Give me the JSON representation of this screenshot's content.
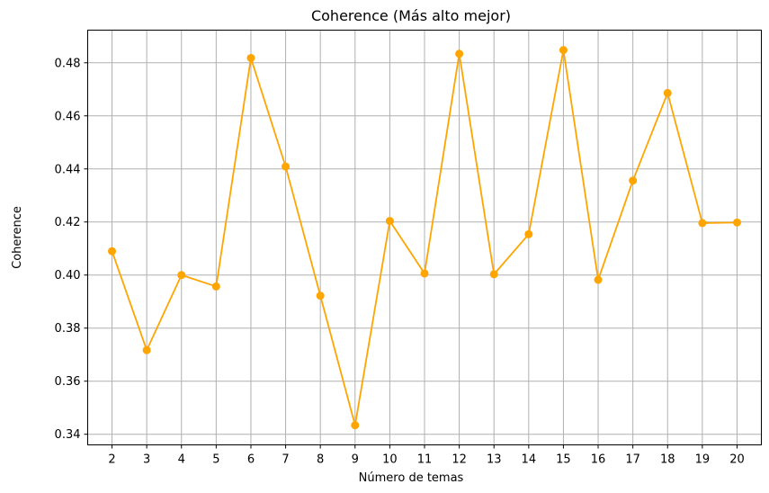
{
  "chart_data": {
    "type": "line",
    "title": "Coherence (Más alto mejor)",
    "xlabel": "Número de temas",
    "ylabel": "Coherence",
    "x": [
      2,
      3,
      4,
      5,
      6,
      7,
      8,
      9,
      10,
      11,
      12,
      13,
      14,
      15,
      16,
      17,
      18,
      19,
      20
    ],
    "series": [
      {
        "values": [
          0.409,
          0.3717,
          0.4,
          0.3957,
          0.4818,
          0.4409,
          0.3922,
          0.3434,
          0.4204,
          0.4006,
          0.4834,
          0.4003,
          0.4154,
          0.4848,
          0.3982,
          0.4356,
          0.4686,
          0.4196,
          0.4198
        ],
        "color": "#ffa500"
      }
    ],
    "xlim": [
      1.3,
      20.7
    ],
    "ylim": [
      0.336,
      0.4923
    ],
    "x_ticks": [
      "2",
      "3",
      "4",
      "5",
      "6",
      "7",
      "8",
      "9",
      "10",
      "11",
      "12",
      "13",
      "14",
      "15",
      "16",
      "17",
      "18",
      "19",
      "20"
    ],
    "y_ticks": [
      0.34,
      0.36,
      0.38,
      0.4,
      0.42,
      0.44,
      0.46,
      0.48
    ],
    "y_tick_labels": [
      "0.34",
      "0.36",
      "0.38",
      "0.40",
      "0.42",
      "0.44",
      "0.46",
      "0.48"
    ],
    "grid": true,
    "marker": "circle"
  }
}
